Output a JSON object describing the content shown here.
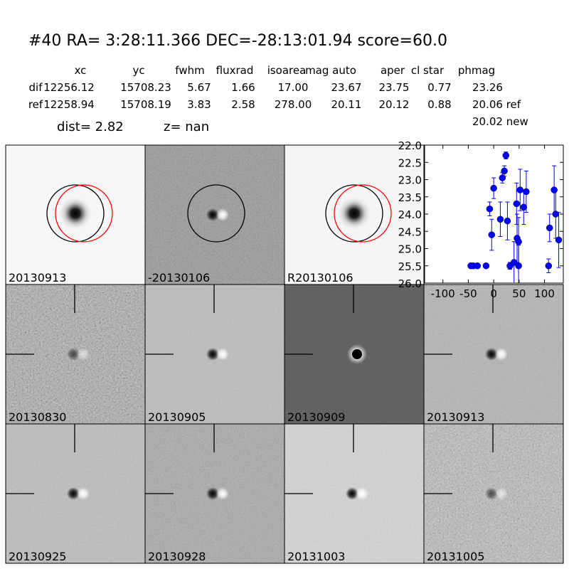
{
  "header": {
    "title": "#40   RA= 3:28:11.366 DEC=-28:13:01.94      score=60.0"
  },
  "table": {
    "columns": [
      "xc",
      "yc",
      "fwhm",
      "fluxrad",
      "isoarea",
      "mag auto",
      "aper",
      "cl star",
      "phmag"
    ],
    "rows": [
      [
        "dif",
        "12256.12",
        "15708.23",
        "5.67",
        "1.66",
        "17.00",
        "23.67",
        "23.75",
        "0.77",
        "23.26"
      ],
      [
        "ref",
        "12258.94",
        "15708.19",
        "3.83",
        "2.58",
        "278.00",
        "20.11",
        "20.12",
        "0.88",
        "20.06 ref"
      ]
    ],
    "extra": "20.02 new"
  },
  "info": {
    "dist": "dist=  2.82",
    "z": "z=   nan"
  },
  "panels": [
    {
      "label": "20130913"
    },
    {
      "label": "-20130106"
    },
    {
      "label": "R20130106"
    },
    {
      "label": "20130830"
    },
    {
      "label": "20130905"
    },
    {
      "label": "20130909"
    },
    {
      "label": "20130913",
      "color": "#ff0000"
    },
    {
      "label": "20130925"
    },
    {
      "label": "20130928"
    },
    {
      "label": "20131003"
    },
    {
      "label": "20131005"
    }
  ],
  "chart_data": {
    "type": "errorbar",
    "y_inverted": true,
    "xlim": [
      -136,
      137
    ],
    "xticks": [
      -100,
      -50,
      0,
      50,
      100
    ],
    "ylim": [
      22,
      26
    ],
    "yticks": [
      {
        "value": 22,
        "label": "22.0"
      },
      {
        "value": 22.5,
        "label": "22.5"
      },
      {
        "value": 23,
        "label": "23.0"
      },
      {
        "value": 23.5,
        "label": "23.5"
      },
      {
        "value": 24,
        "label": "24.0"
      },
      {
        "value": 24.5,
        "label": "24.5"
      },
      {
        "value": 25,
        "label": "25.0"
      },
      {
        "value": 25.5,
        "label": "25.5"
      },
      {
        "value": 26,
        "label": "26.0"
      }
    ],
    "x": [
      -45,
      -40,
      -32,
      -15,
      -8,
      -4,
      0,
      13,
      17,
      21,
      24,
      27,
      32,
      40,
      45,
      46,
      49,
      49,
      52,
      59,
      64,
      108,
      110,
      119,
      122,
      128
    ],
    "series": [
      {
        "color": "#0000ff",
        "values": [
          25.5,
          25.5,
          25.5,
          25.5,
          23.85,
          24.6,
          23.25,
          24.15,
          22.95,
          22.75,
          22.3,
          24.2,
          25.5,
          25.4,
          23.7,
          24.7,
          24.8,
          25.5,
          23.3,
          23.8,
          23.35,
          25.5,
          24.4,
          23.3,
          24.0,
          24.75
        ],
        "errors": [
          0.05,
          0.05,
          0.05,
          0.05,
          0.2,
          0.45,
          0.3,
          0.5,
          0.15,
          0.15,
          0.1,
          0.55,
          0.1,
          0.6,
          0.6,
          0.7,
          0.7,
          0.6,
          0.6,
          0.5,
          0.6,
          0.2,
          0.4,
          0.7,
          0.7,
          0.8
        ]
      }
    ]
  }
}
